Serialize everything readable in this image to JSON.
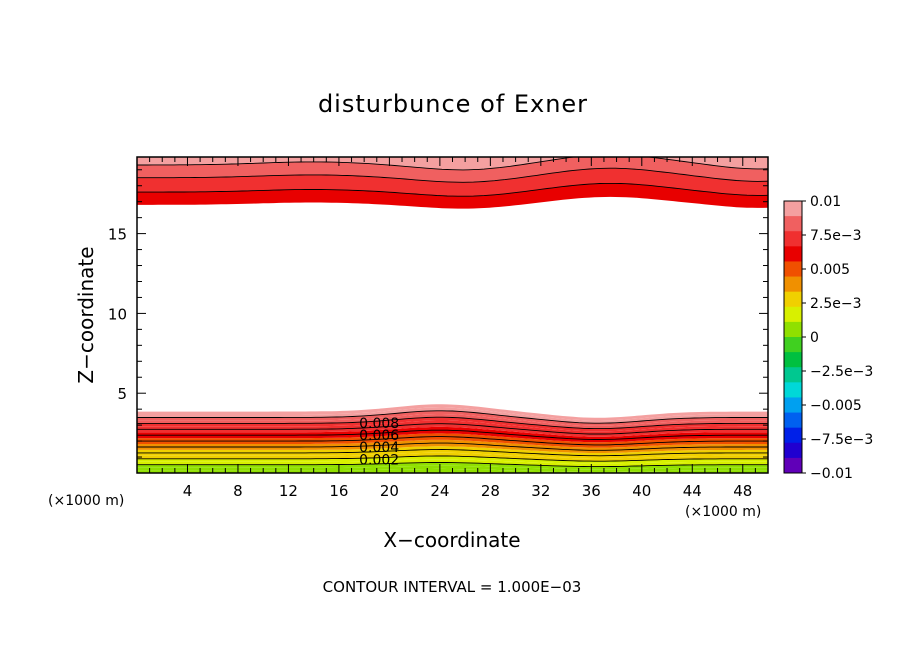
{
  "chart_data": {
    "type": "contour",
    "title": "disturbunce of Exner",
    "xlabel": "X−coordinate",
    "ylabel": "Z−coordinate",
    "x_unit_left": "(×1000 m)",
    "x_unit_right": "(×1000 m)",
    "footer": "CONTOUR INTERVAL = 1.000E−03",
    "xlim": [
      0,
      50
    ],
    "ylim": [
      0,
      19.8
    ],
    "x_ticks": [
      4,
      8,
      12,
      16,
      20,
      24,
      28,
      32,
      36,
      40,
      44,
      48
    ],
    "y_ticks": [
      5,
      10,
      15
    ],
    "contour_interval": 0.001,
    "contour_labels": [
      "0.008",
      "0.006",
      "0.004",
      "0.002"
    ],
    "colorbar": {
      "min": -0.01,
      "max": 0.01,
      "tick_labels": [
        "0.01",
        "7.5e−3",
        "0.005",
        "2.5e−3",
        "0",
        "−2.5e−3",
        "−0.005",
        "−7.5e−3",
        "−0.01"
      ],
      "colors": [
        "#f4a0a0",
        "#f06060",
        "#f03030",
        "#e80000",
        "#f05000",
        "#f09000",
        "#f0d000",
        "#d8f000",
        "#90e000",
        "#40d020",
        "#00c040",
        "#00c890",
        "#00d8d8",
        "#00a0f0",
        "#0060f0",
        "#0020e8",
        "#2000d0",
        "#6000b8"
      ]
    },
    "regions": [
      {
        "name": "top",
        "value_range": [
          0.006,
          0.01
        ]
      },
      {
        "name": "bottom",
        "value_range": [
          0.0,
          0.01
        ]
      }
    ]
  }
}
